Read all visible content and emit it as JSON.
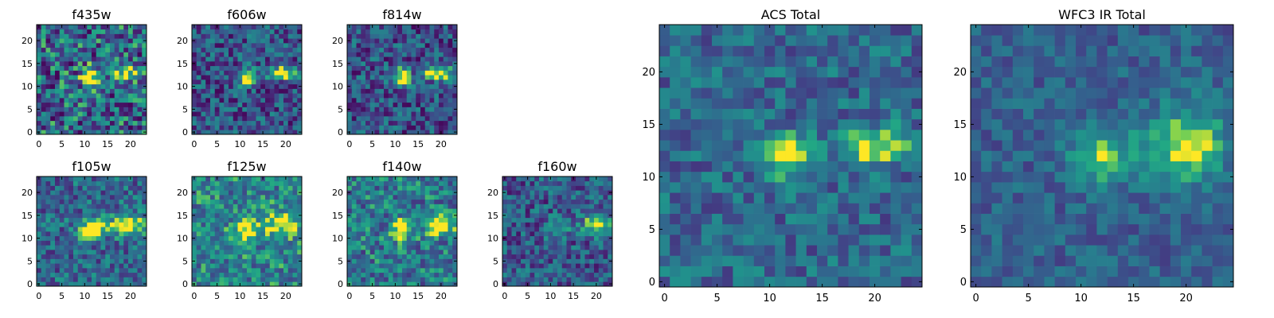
{
  "colormap": "viridis",
  "chart_data": [
    {
      "type": "heatmap",
      "title": "f435w",
      "grid_size": 24,
      "x_ticks": [
        "0",
        "5",
        "10",
        "15",
        "20"
      ],
      "y_ticks": [
        "0",
        "5",
        "10",
        "15",
        "20"
      ],
      "xlim": [
        -0.5,
        23.5
      ],
      "ylim": [
        -0.5,
        23.5
      ],
      "noise": 0.42,
      "blobs": [
        {
          "x": 11.5,
          "y": 12,
          "amp": 0.75,
          "sx": 1.4,
          "sy": 1.5
        },
        {
          "x": 19.5,
          "y": 13,
          "amp": 0.55,
          "sx": 2.2,
          "sy": 1.0
        }
      ],
      "background": 0.42,
      "grid": false
    },
    {
      "type": "heatmap",
      "title": "f606w",
      "grid_size": 24,
      "x_ticks": [
        "0",
        "5",
        "10",
        "15",
        "20"
      ],
      "y_ticks": [
        "0",
        "5",
        "10",
        "15",
        "20"
      ],
      "xlim": [
        -0.5,
        23.5
      ],
      "ylim": [
        -0.5,
        23.5
      ],
      "noise": 0.3,
      "blobs": [
        {
          "x": 11.5,
          "y": 12,
          "amp": 0.85,
          "sx": 1.3,
          "sy": 1.3
        },
        {
          "x": 19.5,
          "y": 13,
          "amp": 0.75,
          "sx": 2.3,
          "sy": 1.0
        }
      ],
      "background": 0.32,
      "grid": false
    },
    {
      "type": "heatmap",
      "title": "f814w",
      "grid_size": 24,
      "x_ticks": [
        "0",
        "5",
        "10",
        "15",
        "20"
      ],
      "y_ticks": [
        "0",
        "5",
        "10",
        "15",
        "20"
      ],
      "xlim": [
        -0.5,
        23.5
      ],
      "ylim": [
        -0.5,
        23.5
      ],
      "noise": 0.3,
      "blobs": [
        {
          "x": 11.5,
          "y": 12,
          "amp": 0.85,
          "sx": 1.3,
          "sy": 1.3
        },
        {
          "x": 19.5,
          "y": 13,
          "amp": 0.8,
          "sx": 2.3,
          "sy": 1.0
        }
      ],
      "background": 0.32,
      "grid": false
    },
    {
      "type": "heatmap",
      "title": "f105w",
      "grid_size": 24,
      "x_ticks": [
        "0",
        "5",
        "10",
        "15",
        "20"
      ],
      "y_ticks": [
        "0",
        "5",
        "10",
        "15",
        "20"
      ],
      "xlim": [
        -0.5,
        23.5
      ],
      "ylim": [
        -0.5,
        23.5
      ],
      "noise": 0.28,
      "blobs": [
        {
          "x": 11.5,
          "y": 12,
          "amp": 0.75,
          "sx": 1.8,
          "sy": 1.6
        },
        {
          "x": 19,
          "y": 13,
          "amp": 0.7,
          "sx": 2.6,
          "sy": 1.6
        }
      ],
      "background": 0.42,
      "grid": false
    },
    {
      "type": "heatmap",
      "title": "f125w",
      "grid_size": 24,
      "x_ticks": [
        "0",
        "5",
        "10",
        "15",
        "20"
      ],
      "y_ticks": [
        "0",
        "5",
        "10",
        "15",
        "20"
      ],
      "xlim": [
        -0.5,
        23.5
      ],
      "ylim": [
        -0.5,
        23.5
      ],
      "noise": 0.3,
      "blobs": [
        {
          "x": 11.5,
          "y": 12,
          "amp": 0.6,
          "sx": 1.8,
          "sy": 1.8
        },
        {
          "x": 19,
          "y": 13,
          "amp": 0.55,
          "sx": 2.6,
          "sy": 1.8
        }
      ],
      "background": 0.55,
      "grid": false
    },
    {
      "type": "heatmap",
      "title": "f140w",
      "grid_size": 24,
      "x_ticks": [
        "0",
        "5",
        "10",
        "15",
        "20"
      ],
      "y_ticks": [
        "0",
        "5",
        "10",
        "15",
        "20"
      ],
      "xlim": [
        -0.5,
        23.5
      ],
      "ylim": [
        -0.5,
        23.5
      ],
      "noise": 0.3,
      "blobs": [
        {
          "x": 11.5,
          "y": 12,
          "amp": 0.65,
          "sx": 1.6,
          "sy": 1.6
        },
        {
          "x": 20,
          "y": 13,
          "amp": 0.65,
          "sx": 2.2,
          "sy": 1.6
        }
      ],
      "background": 0.5,
      "grid": false
    },
    {
      "type": "heatmap",
      "title": "f160w",
      "grid_size": 24,
      "x_ticks": [
        "0",
        "5",
        "10",
        "15",
        "20"
      ],
      "y_ticks": [
        "0",
        "5",
        "10",
        "15",
        "20"
      ],
      "xlim": [
        -0.5,
        23.5
      ],
      "ylim": [
        -0.5,
        23.5
      ],
      "noise": 0.28,
      "blobs": [
        {
          "x": 11.5,
          "y": 12,
          "amp": 0.5,
          "sx": 1.6,
          "sy": 1.6
        },
        {
          "x": 20,
          "y": 13,
          "amp": 0.65,
          "sx": 2.0,
          "sy": 1.6
        }
      ],
      "background": 0.35,
      "grid": false
    },
    {
      "type": "heatmap",
      "title": "ACS Total",
      "grid_size": 25,
      "x_ticks": [
        "0",
        "5",
        "10",
        "15",
        "20"
      ],
      "y_ticks": [
        "0",
        "5",
        "10",
        "15",
        "20"
      ],
      "xlim": [
        -0.5,
        24.5
      ],
      "ylim": [
        -0.5,
        24.5
      ],
      "noise": 0.22,
      "blobs": [
        {
          "x": 11.5,
          "y": 12,
          "amp": 0.75,
          "sx": 1.4,
          "sy": 1.4
        },
        {
          "x": 20,
          "y": 13,
          "amp": 0.62,
          "sx": 2.6,
          "sy": 1.2
        }
      ],
      "background": 0.42,
      "grid": false
    },
    {
      "type": "heatmap",
      "title": "WFC3 IR Total",
      "grid_size": 25,
      "x_ticks": [
        "0",
        "5",
        "10",
        "15",
        "20"
      ],
      "y_ticks": [
        "0",
        "5",
        "10",
        "15",
        "20"
      ],
      "xlim": [
        -0.5,
        24.5
      ],
      "ylim": [
        -0.5,
        24.5
      ],
      "noise": 0.16,
      "blobs": [
        {
          "x": 12,
          "y": 12,
          "amp": 0.5,
          "sx": 2.0,
          "sy": 2.0
        },
        {
          "x": 20,
          "y": 13,
          "amp": 0.62,
          "sx": 2.6,
          "sy": 2.4
        }
      ],
      "background": 0.38,
      "grid": false
    }
  ]
}
